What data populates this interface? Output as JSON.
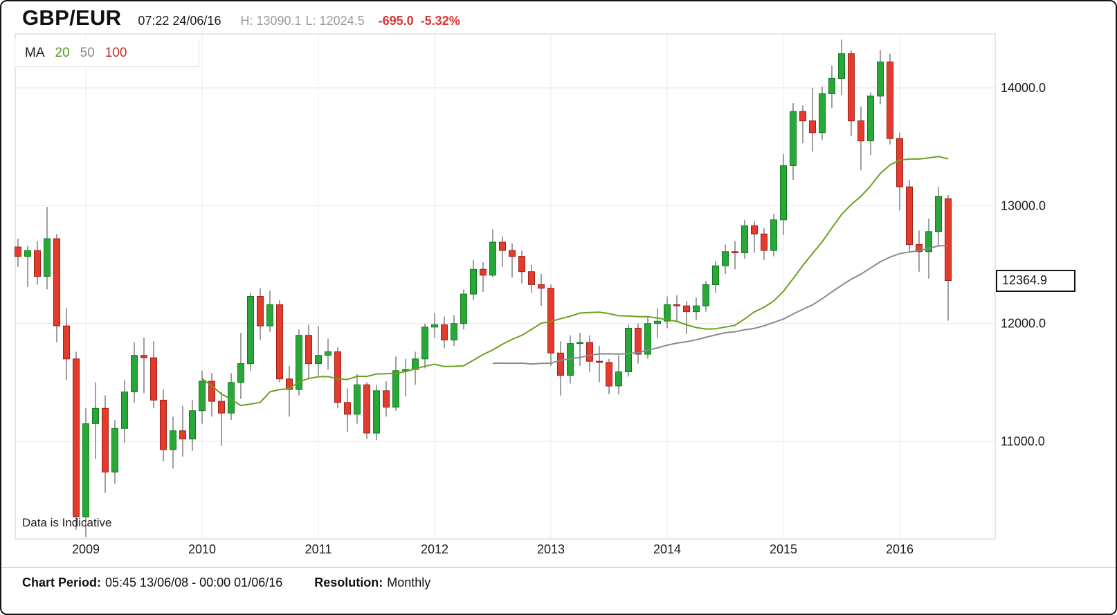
{
  "header": {
    "symbol": "GBP/EUR",
    "timestamp": "07:22 24/06/16",
    "high_label": "H: 13090.1",
    "low_label": "L: 12024.5",
    "change": "-695.0",
    "change_pct": "-5.32%"
  },
  "legend": {
    "ma_label": "MA",
    "periods": [
      {
        "label": "20",
        "color": "#4e9e1f"
      },
      {
        "label": "50",
        "color": "#8a8a8a"
      },
      {
        "label": "100",
        "color": "#cc2a2a"
      }
    ]
  },
  "watermark": "Data is Indicative",
  "price_tag_text": "12364.9",
  "footer": {
    "chart_period_label": "Chart Period:",
    "chart_period_value": "05:45 13/06/08 - 00:00 01/06/16",
    "resolution_label": "Resolution:",
    "resolution_value": "Monthly"
  },
  "chart_data": {
    "type": "candlestick",
    "title": "GBP/EUR",
    "resolution": "Monthly",
    "start_month": "2008-06",
    "last_price": 12364.9,
    "up_color": "#28a838",
    "down_color": "#e33b2e",
    "grid": true,
    "y_ticks": [
      14000,
      13000,
      12000,
      11000
    ],
    "y_range_visible": [
      10170,
      14460
    ],
    "x_tick_labels": [
      "2009",
      "2010",
      "2011",
      "2012",
      "2013",
      "2014",
      "2015",
      "2016"
    ],
    "x_first_tick_index": 7,
    "x_tick_step": 12,
    "moving_averages": [
      {
        "period": 20,
        "color": "#6aa11d"
      },
      {
        "period": 50,
        "color": "#8a8a8a"
      },
      {
        "period": 100,
        "color": "#cc2a2a"
      }
    ],
    "candles": [
      [
        12650,
        12720,
        12480,
        12570
      ],
      [
        12570,
        12660,
        12310,
        12620
      ],
      [
        12620,
        12700,
        12330,
        12400
      ],
      [
        12400,
        12990,
        12290,
        12720
      ],
      [
        12720,
        12760,
        11840,
        11980
      ],
      [
        11980,
        12130,
        11520,
        11700
      ],
      [
        11700,
        11760,
        10250,
        10360
      ],
      [
        10360,
        11280,
        10190,
        11150
      ],
      [
        11150,
        11500,
        10850,
        11280
      ],
      [
        11280,
        11390,
        10560,
        10740
      ],
      [
        10740,
        11180,
        10640,
        11110
      ],
      [
        11110,
        11520,
        10990,
        11420
      ],
      [
        11420,
        11840,
        11330,
        11730
      ],
      [
        11730,
        11880,
        11410,
        11710
      ],
      [
        11710,
        11850,
        11280,
        11350
      ],
      [
        11350,
        11440,
        10830,
        10930
      ],
      [
        10930,
        11210,
        10770,
        11090
      ],
      [
        11090,
        11300,
        10870,
        11020
      ],
      [
        11020,
        11350,
        10920,
        11260
      ],
      [
        11260,
        11600,
        11150,
        11510
      ],
      [
        11510,
        11580,
        11210,
        11340
      ],
      [
        11340,
        11420,
        10960,
        11240
      ],
      [
        11240,
        11580,
        11180,
        11500
      ],
      [
        11500,
        11920,
        11360,
        11660
      ],
      [
        11660,
        12260,
        11600,
        12230
      ],
      [
        12230,
        12300,
        11860,
        11980
      ],
      [
        11980,
        12280,
        11930,
        12160
      ],
      [
        12160,
        12200,
        11500,
        11530
      ],
      [
        11530,
        11640,
        11210,
        11440
      ],
      [
        11440,
        11950,
        11390,
        11900
      ],
      [
        11900,
        11990,
        11530,
        11660
      ],
      [
        11660,
        11980,
        11560,
        11730
      ],
      [
        11730,
        11870,
        11610,
        11760
      ],
      [
        11760,
        11800,
        11280,
        11330
      ],
      [
        11330,
        11450,
        11080,
        11230
      ],
      [
        11230,
        11570,
        11150,
        11480
      ],
      [
        11480,
        11500,
        11020,
        11070
      ],
      [
        11070,
        11480,
        11010,
        11430
      ],
      [
        11430,
        11510,
        11210,
        11290
      ],
      [
        11290,
        11720,
        11260,
        11600
      ],
      [
        11600,
        11700,
        11380,
        11610
      ],
      [
        11610,
        11760,
        11480,
        11700
      ],
      [
        11700,
        12000,
        11620,
        11970
      ],
      [
        11970,
        12090,
        11880,
        11990
      ],
      [
        11990,
        12060,
        11790,
        11860
      ],
      [
        11860,
        12070,
        11810,
        12000
      ],
      [
        12000,
        12290,
        11950,
        12250
      ],
      [
        12250,
        12540,
        12200,
        12460
      ],
      [
        12460,
        12520,
        12270,
        12410
      ],
      [
        12410,
        12800,
        12390,
        12690
      ],
      [
        12690,
        12740,
        12480,
        12620
      ],
      [
        12620,
        12680,
        12390,
        12570
      ],
      [
        12570,
        12620,
        12340,
        12440
      ],
      [
        12440,
        12500,
        12260,
        12330
      ],
      [
        12330,
        12420,
        12150,
        12300
      ],
      [
        12300,
        12330,
        11640,
        11750
      ],
      [
        11750,
        11850,
        11390,
        11560
      ],
      [
        11560,
        11900,
        11490,
        11830
      ],
      [
        11830,
        11920,
        11640,
        11840
      ],
      [
        11840,
        11900,
        11590,
        11680
      ],
      [
        11680,
        11810,
        11500,
        11670
      ],
      [
        11670,
        11700,
        11400,
        11470
      ],
      [
        11470,
        11730,
        11400,
        11590
      ],
      [
        11590,
        11990,
        11550,
        11960
      ],
      [
        11960,
        12000,
        11660,
        11740
      ],
      [
        11740,
        12060,
        11700,
        12000
      ],
      [
        12000,
        12130,
        11880,
        12020
      ],
      [
        12020,
        12230,
        11960,
        12160
      ],
      [
        12160,
        12240,
        12010,
        12150
      ],
      [
        12150,
        12190,
        11910,
        12100
      ],
      [
        12100,
        12220,
        12030,
        12150
      ],
      [
        12150,
        12360,
        12100,
        12330
      ],
      [
        12330,
        12530,
        12260,
        12490
      ],
      [
        12490,
        12670,
        12420,
        12610
      ],
      [
        12610,
        12700,
        12460,
        12600
      ],
      [
        12600,
        12880,
        12550,
        12830
      ],
      [
        12830,
        12870,
        12600,
        12760
      ],
      [
        12760,
        12810,
        12540,
        12620
      ],
      [
        12620,
        12930,
        12570,
        12880
      ],
      [
        12880,
        13440,
        12750,
        13340
      ],
      [
        13340,
        13870,
        13220,
        13800
      ],
      [
        13800,
        13850,
        13530,
        13720
      ],
      [
        13720,
        14000,
        13460,
        13620
      ],
      [
        13620,
        14010,
        13560,
        13950
      ],
      [
        13950,
        14190,
        13830,
        14080
      ],
      [
        14080,
        14410,
        13940,
        14290
      ],
      [
        14290,
        14320,
        13590,
        13720
      ],
      [
        13720,
        13840,
        13300,
        13550
      ],
      [
        13550,
        13960,
        13430,
        13930
      ],
      [
        13930,
        14320,
        13860,
        14220
      ],
      [
        14220,
        14290,
        13520,
        13570
      ],
      [
        13570,
        13620,
        12960,
        13160
      ],
      [
        13160,
        13220,
        12610,
        12670
      ],
      [
        12670,
        12790,
        12440,
        12610
      ],
      [
        12610,
        12890,
        12380,
        12780
      ],
      [
        12780,
        13160,
        12660,
        13080
      ],
      [
        13059.9,
        13090.1,
        12024.5,
        12364.9
      ]
    ]
  }
}
